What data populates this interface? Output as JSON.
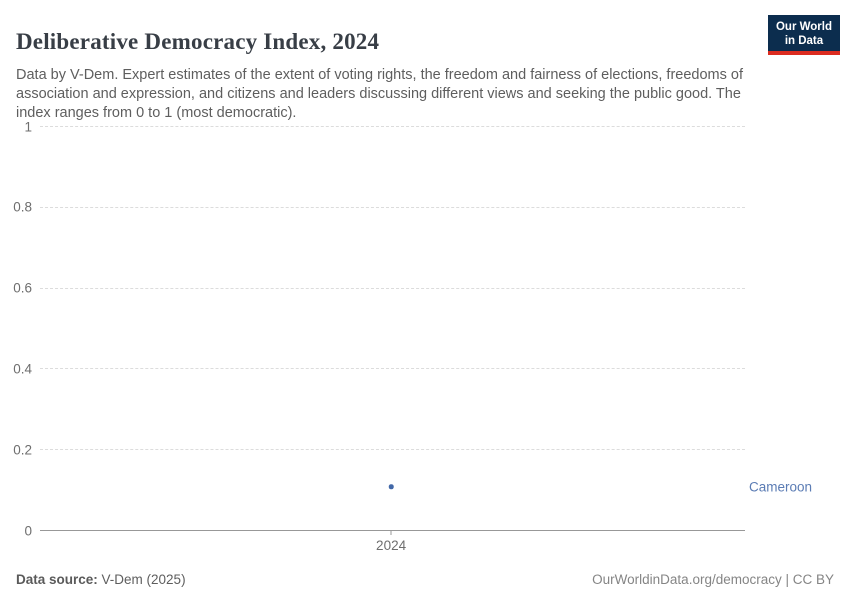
{
  "header": {
    "title": "Deliberative Democracy Index, 2024",
    "subtitle": "Data by V-Dem. Expert estimates of the extent of voting rights, the freedom and fairness of elections, freedoms of association and expression, and citizens and leaders discussing different views and seeking the public good. The index ranges from 0 to 1 (most democratic).",
    "logo": {
      "line1": "Our World",
      "line2": "in Data",
      "bg_color": "#0c2d4e",
      "bar_color": "#dc2c20"
    }
  },
  "chart_data": {
    "type": "scatter",
    "title": "Deliberative Democracy Index, 2024",
    "x": [
      2024
    ],
    "xtick_labels": [
      "2024"
    ],
    "series": [
      {
        "name": "Cameroon",
        "values": [
          0.11
        ],
        "color": "#4268a8",
        "label_color": "#5b7cb4"
      }
    ],
    "xlabel": "",
    "ylabel": "",
    "ylim": [
      0,
      1
    ],
    "yticks": [
      0,
      0.2,
      0.4,
      0.6,
      0.8,
      1
    ],
    "ytick_labels": [
      "0",
      "0.2",
      "0.4",
      "0.6",
      "0.8",
      "1"
    ],
    "grid": "horizontal-dashed",
    "legend_position": "right-of-point"
  },
  "footer": {
    "source_label": "Data source:",
    "source_value": " V-Dem (2025)",
    "credit": "OurWorldinData.org/democracy | CC BY"
  }
}
